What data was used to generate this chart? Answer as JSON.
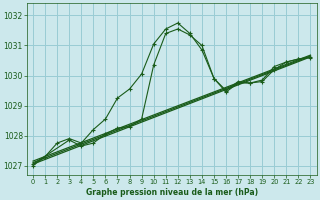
{
  "title": "Graphe pression niveau de la mer (hPa)",
  "background_color": "#cce8ec",
  "grid_color": "#99ccd4",
  "line_color": "#1a5c1a",
  "xlim": [
    -0.5,
    23.5
  ],
  "ylim": [
    1026.7,
    1032.4
  ],
  "yticks": [
    1027,
    1028,
    1029,
    1030,
    1031,
    1032
  ],
  "xticks": [
    0,
    1,
    2,
    3,
    4,
    5,
    6,
    7,
    8,
    9,
    10,
    11,
    12,
    13,
    14,
    15,
    16,
    17,
    18,
    19,
    20,
    21,
    22,
    23
  ],
  "series1_x": [
    0,
    1,
    2,
    3,
    4,
    5,
    6,
    7,
    8,
    9,
    10,
    11,
    12,
    13,
    14,
    15,
    16,
    17,
    18,
    19,
    20,
    21,
    22,
    23
  ],
  "series1_y": [
    1027.0,
    1027.3,
    1027.75,
    1027.9,
    1027.75,
    1028.2,
    1028.55,
    1029.25,
    1029.55,
    1030.05,
    1031.05,
    1031.55,
    1031.75,
    1031.4,
    1030.85,
    1029.9,
    1029.45,
    1029.75,
    1029.75,
    1029.85,
    1030.3,
    1030.45,
    1030.55,
    1030.6
  ],
  "series2_x": [
    0,
    3,
    4,
    5,
    6,
    7,
    8,
    9,
    10,
    11,
    12,
    13,
    14,
    15,
    16,
    17,
    18,
    19,
    20,
    21,
    22,
    23
  ],
  "series2_y": [
    1027.05,
    1027.85,
    1027.65,
    1027.75,
    1028.05,
    1028.25,
    1028.3,
    1028.55,
    1030.35,
    1031.4,
    1031.55,
    1031.35,
    1031.0,
    1029.9,
    1029.5,
    1029.8,
    1029.75,
    1029.8,
    1030.2,
    1030.45,
    1030.55,
    1030.62
  ],
  "series3_x": [
    0,
    23
  ],
  "series3_y": [
    1027.05,
    1030.62
  ],
  "series4_x": [
    0,
    23
  ],
  "series4_y": [
    1027.1,
    1030.65
  ],
  "series5_x": [
    0,
    23
  ],
  "series5_y": [
    1027.15,
    1030.68
  ]
}
